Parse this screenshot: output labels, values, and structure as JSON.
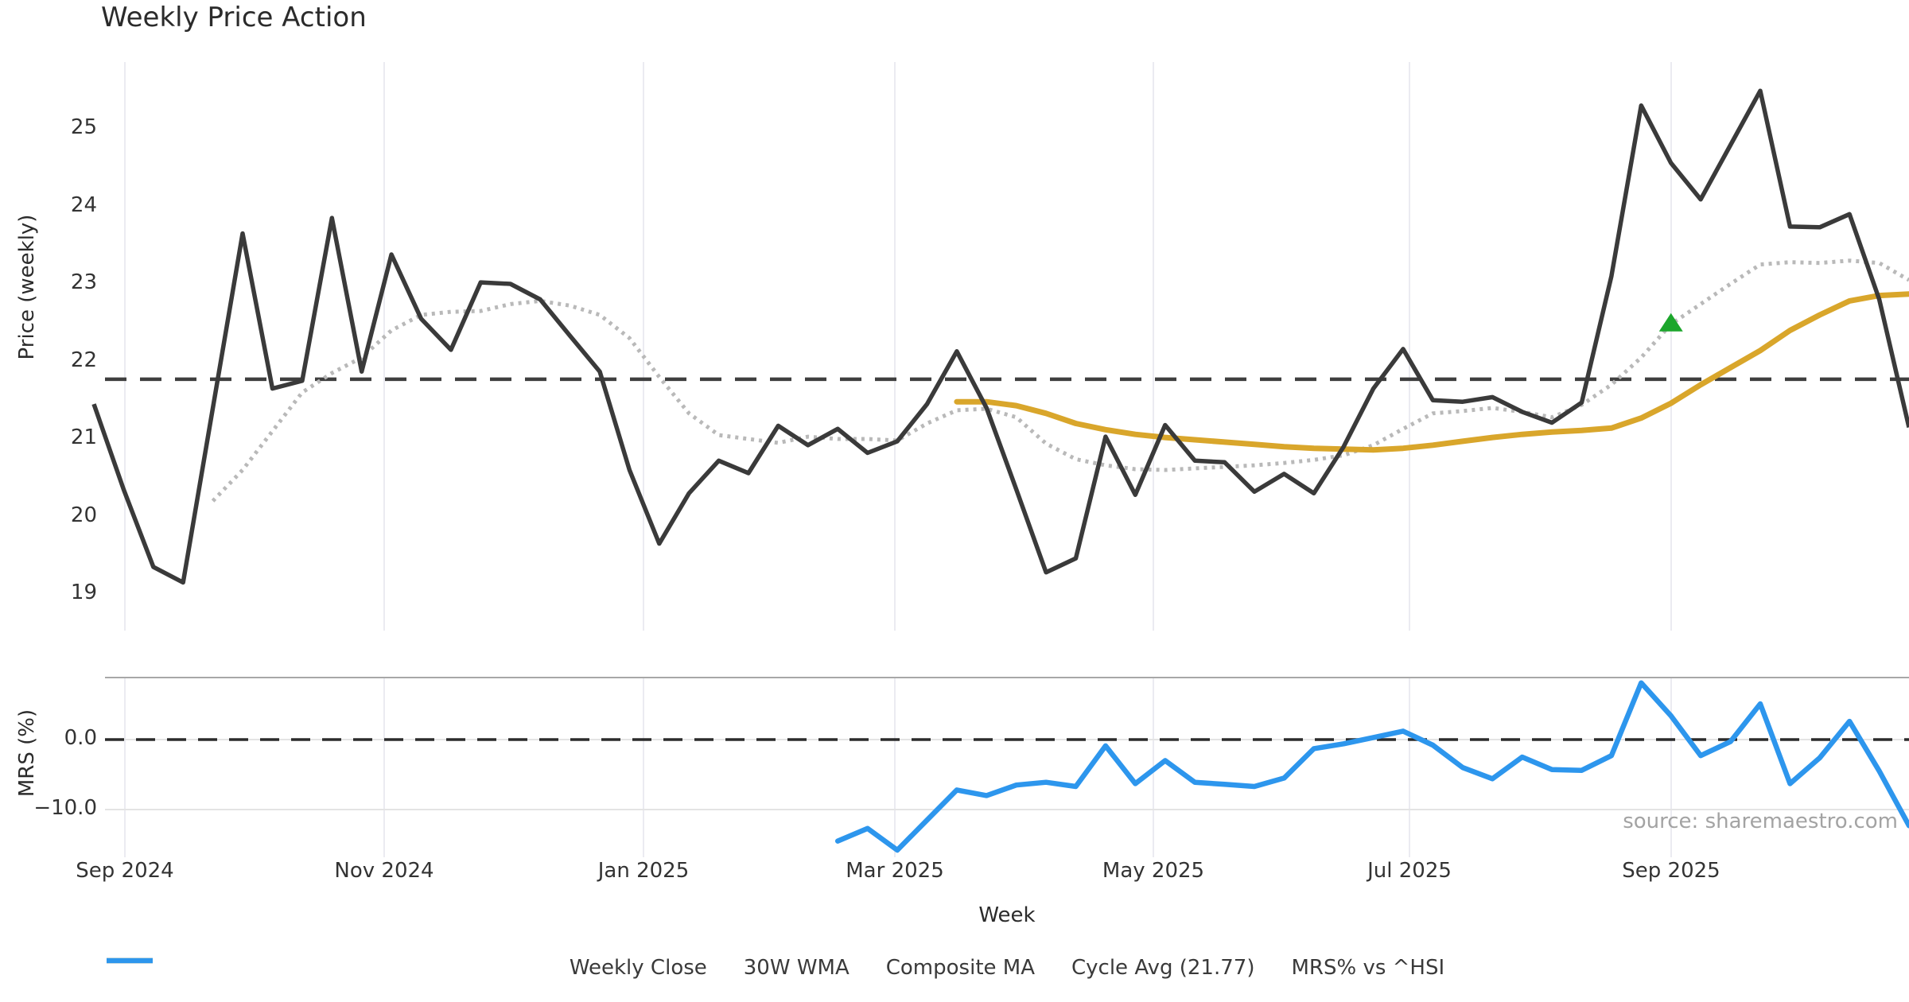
{
  "title": "Weekly Price Action",
  "xlabel": "Week",
  "source": "source: sharemaestro.com",
  "colors": {
    "weekly_close": "#3a3a3a",
    "wma_30w": "#d9a62b",
    "composite_ma": "#b9b9b9",
    "cycle_avg": "#3f3f3f",
    "mrs_line": "#2d96ed",
    "marker_green": "#1ca62c",
    "grid_vertical": "#ebebf1",
    "grid_horizontal": "#e4e4e4",
    "panel_spine": "#a8a8a8",
    "zero_dash": "#2b2b2b"
  },
  "legend": {
    "items": [
      {
        "id": "weekly-close",
        "label": "Weekly Close",
        "color": "#3a3a3a",
        "dash": "",
        "width": 5
      },
      {
        "id": "wma-30w",
        "label": "30W WMA",
        "color": "#d9a62b",
        "dash": "",
        "width": 6.5
      },
      {
        "id": "composite-ma",
        "label": "Composite MA",
        "color": "#b9b9b9",
        "dash": "4 6",
        "width": 5
      },
      {
        "id": "cycle-avg",
        "label": "Cycle Avg (21.77)",
        "color": "#3f3f3f",
        "dash": "17 13",
        "width": 4.5
      },
      {
        "id": "mrs-hsi",
        "label": "MRS% vs ^HSI",
        "color": "#2d96ed",
        "dash": "",
        "width": 6.5
      }
    ]
  },
  "chart_data": [
    {
      "type": "line",
      "title": "Weekly Price Action",
      "xlabel": "Week",
      "ylabel": "Price (weekly)",
      "ylim": [
        18.55,
        25.95
      ],
      "yticks": [
        19,
        20,
        21,
        22,
        23,
        24,
        25
      ],
      "xtick_labels": [
        "Sep 2024",
        "Nov 2024",
        "Jan 2025",
        "Mar 2025",
        "May 2025",
        "Jul 2025",
        "Sep 2025"
      ],
      "grid": "vertical-only",
      "legend_position": "bottom-center",
      "x": [
        "2024-08-26",
        "2024-09-02",
        "2024-09-09",
        "2024-09-16",
        "2024-09-23",
        "2024-09-30",
        "2024-10-07",
        "2024-10-14",
        "2024-10-21",
        "2024-10-28",
        "2024-11-04",
        "2024-11-11",
        "2024-11-18",
        "2024-11-25",
        "2024-12-02",
        "2024-12-09",
        "2024-12-16",
        "2024-12-23",
        "2024-12-30",
        "2025-01-06",
        "2025-01-13",
        "2025-01-20",
        "2025-01-27",
        "2025-02-03",
        "2025-02-10",
        "2025-02-17",
        "2025-02-24",
        "2025-03-03",
        "2025-03-10",
        "2025-03-17",
        "2025-03-24",
        "2025-03-31",
        "2025-04-07",
        "2025-04-14",
        "2025-04-21",
        "2025-04-28",
        "2025-05-05",
        "2025-05-12",
        "2025-05-19",
        "2025-05-26",
        "2025-06-02",
        "2025-06-09",
        "2025-06-16",
        "2025-06-23",
        "2025-06-30",
        "2025-07-07",
        "2025-07-14",
        "2025-07-21",
        "2025-07-28",
        "2025-08-04",
        "2025-08-11",
        "2025-08-18",
        "2025-08-25",
        "2025-09-01",
        "2025-09-08",
        "2025-09-15",
        "2025-09-22",
        "2025-09-29",
        "2025-10-06",
        "2025-10-13",
        "2025-10-20",
        "2025-10-27"
      ],
      "series": [
        {
          "name": "Weekly Close",
          "style": "solid",
          "color": "#3a3a3a",
          "values": [
            21.45,
            20.35,
            19.35,
            19.15,
            21.4,
            23.65,
            21.65,
            21.75,
            23.85,
            21.87,
            23.38,
            22.55,
            22.15,
            23.02,
            23.0,
            22.8,
            22.33,
            21.87,
            20.6,
            19.65,
            20.3,
            20.72,
            20.56,
            21.17,
            20.92,
            21.13,
            20.82,
            20.97,
            21.45,
            22.13,
            21.4,
            20.35,
            19.28,
            19.46,
            21.03,
            20.28,
            21.18,
            20.72,
            20.7,
            20.32,
            20.55,
            20.3,
            20.9,
            21.65,
            22.16,
            21.5,
            21.48,
            21.54,
            21.35,
            21.21,
            21.47,
            23.1,
            25.3,
            24.56,
            24.09,
            24.79,
            25.49,
            23.74,
            23.73,
            23.9,
            22.8,
            21.15
          ]
        },
        {
          "name": "30W WMA",
          "style": "solid",
          "color": "#d9a62b",
          "values": [
            null,
            null,
            null,
            null,
            null,
            null,
            null,
            null,
            null,
            null,
            null,
            null,
            null,
            null,
            null,
            null,
            null,
            null,
            null,
            null,
            null,
            null,
            null,
            null,
            null,
            null,
            null,
            null,
            null,
            21.48,
            21.48,
            21.43,
            21.33,
            21.2,
            21.12,
            21.06,
            21.02,
            20.99,
            20.96,
            20.93,
            20.9,
            20.88,
            20.87,
            20.86,
            20.88,
            20.92,
            20.97,
            21.02,
            21.06,
            21.09,
            21.11,
            21.14,
            21.27,
            21.46,
            21.7,
            21.92,
            22.14,
            22.4,
            22.6,
            22.78,
            22.85,
            22.87
          ]
        },
        {
          "name": "Composite MA",
          "style": "dotted",
          "color": "#b9b9b9",
          "values": [
            null,
            null,
            null,
            null,
            20.2,
            20.6,
            21.1,
            21.6,
            21.85,
            22.05,
            22.4,
            22.6,
            22.64,
            22.65,
            22.74,
            22.78,
            22.72,
            22.6,
            22.3,
            21.8,
            21.33,
            21.05,
            21.0,
            20.95,
            21.03,
            21.0,
            21.0,
            20.98,
            21.2,
            21.37,
            21.39,
            21.28,
            20.94,
            20.74,
            20.66,
            20.61,
            20.6,
            20.62,
            20.64,
            20.66,
            20.69,
            20.73,
            20.79,
            20.92,
            21.13,
            21.33,
            21.36,
            21.4,
            21.35,
            21.28,
            21.44,
            21.7,
            22.05,
            22.48,
            22.74,
            23.0,
            23.25,
            23.28,
            23.27,
            23.3,
            23.27,
            23.05
          ]
        },
        {
          "name": "Cycle Avg (21.77)",
          "style": "dashed",
          "color": "#3f3f3f",
          "constant": 21.77
        }
      ],
      "marker": {
        "shape": "triangle-up",
        "color": "#1ca62c",
        "x": "2025-09-01",
        "x_index": 53,
        "value": 22.48
      }
    },
    {
      "type": "line",
      "ylabel": "MRS (%)",
      "yticks": [
        0.0,
        -10.0
      ],
      "ytick_labels": [
        "0.0",
        "−10.0"
      ],
      "ylim": [
        -17.6,
        8.9
      ],
      "zero_line": "dashed",
      "series": [
        {
          "name": "MRS% vs ^HSI",
          "style": "solid",
          "color": "#2d96ed",
          "values": [
            null,
            null,
            null,
            null,
            null,
            null,
            null,
            null,
            null,
            null,
            null,
            null,
            null,
            null,
            null,
            null,
            null,
            null,
            null,
            null,
            null,
            null,
            null,
            null,
            null,
            -14.5,
            -12.7,
            -15.8,
            -11.5,
            -7.2,
            -8.0,
            -6.5,
            -6.1,
            -6.7,
            -0.9,
            -6.3,
            -3.0,
            -6.1,
            -6.4,
            -6.7,
            -5.5,
            -1.3,
            -0.6,
            0.3,
            1.2,
            -0.8,
            -4.0,
            -5.6,
            -2.5,
            -4.3,
            -4.4,
            -2.3,
            8.1,
            3.4,
            -2.3,
            -0.3,
            5.1,
            -6.3,
            -2.6,
            2.6,
            -4.5,
            -12.3
          ]
        }
      ]
    }
  ],
  "price_axis": {
    "tick_labels": [
      "25",
      "24",
      "23",
      "22",
      "21",
      "20",
      "19"
    ]
  },
  "mrs_axis": {
    "tick_labels": [
      "0.0",
      "−10.0"
    ]
  },
  "ylabel_price": "Price (weekly)",
  "ylabel_mrs": "MRS (%)"
}
